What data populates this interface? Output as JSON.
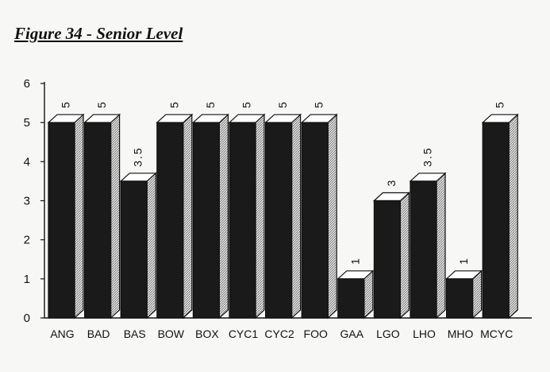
{
  "figure_title": "Figure 34 - Senior Level",
  "chart_data": {
    "type": "bar",
    "title": "Figure 34 - Senior Level",
    "xlabel": "",
    "ylabel": "",
    "categories": [
      "ANG",
      "BAD",
      "BAS",
      "BOW",
      "BOX",
      "CYC1",
      "CYC2",
      "FOO",
      "GAA",
      "LGO",
      "LHO",
      "MHO",
      "MCYC"
    ],
    "values": [
      5,
      5,
      3.5,
      5,
      5,
      5,
      5,
      5,
      1,
      3,
      3.5,
      1,
      5
    ],
    "data_labels": [
      "5",
      "5",
      "3.5",
      "5",
      "5",
      "5",
      "5",
      "5",
      "1",
      "3",
      "3.5",
      "1",
      "5"
    ],
    "ylim": [
      0,
      6
    ],
    "yticks": [
      0,
      1,
      2,
      3,
      4,
      5,
      6
    ],
    "grid": false,
    "legend": "none",
    "style": "3d-bars",
    "colors": {
      "bar_front": "#1a1a1a",
      "bar_side": "#e4e4e4",
      "bar_top": "#ffffff",
      "axis": "#111111"
    }
  }
}
